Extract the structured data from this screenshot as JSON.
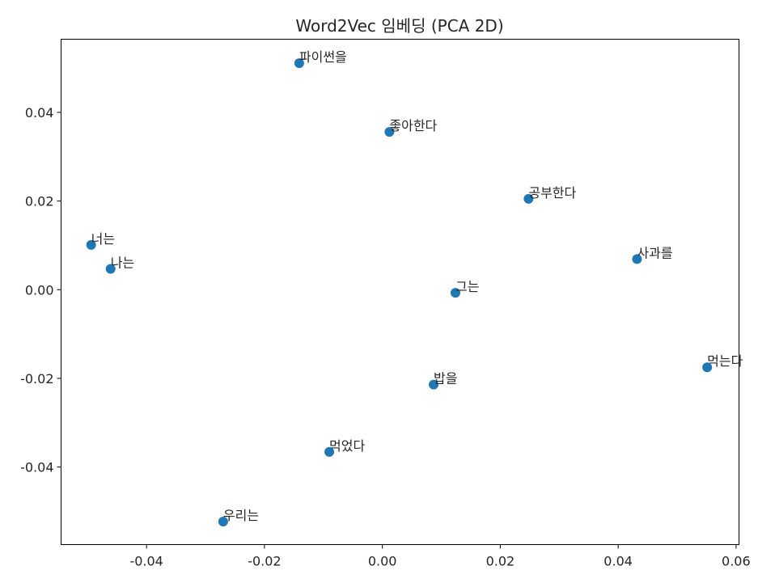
{
  "chart_data": {
    "type": "scatter",
    "title": "Word2Vec 임베딩 (PCA 2D)",
    "xlabel": "",
    "ylabel": "",
    "xlim": [
      -0.0545,
      0.0605
    ],
    "ylim": [
      -0.0575,
      0.0565
    ],
    "xticks": [
      -0.04,
      -0.02,
      0.0,
      0.02,
      0.04,
      0.06
    ],
    "xtick_labels": [
      "-0.04",
      "-0.02",
      "0.00",
      "0.02",
      "0.04",
      "0.06"
    ],
    "yticks": [
      -0.04,
      -0.02,
      0.0,
      0.02,
      0.04
    ],
    "ytick_labels": [
      "-0.04",
      "-0.02",
      "0.00",
      "0.02",
      "0.04"
    ],
    "grid": false,
    "marker_color": "#1f77b4",
    "points": [
      {
        "label": "파이썬을",
        "x": -0.0141,
        "y": 0.0511
      },
      {
        "label": "좋아한다",
        "x": 0.0012,
        "y": 0.0356
      },
      {
        "label": "공부한다",
        "x": 0.0248,
        "y": 0.0205
      },
      {
        "label": "너는",
        "x": -0.0494,
        "y": 0.0101
      },
      {
        "label": "나는",
        "x": -0.0461,
        "y": 0.0047
      },
      {
        "label": "사과를",
        "x": 0.0432,
        "y": 0.0069
      },
      {
        "label": "그는",
        "x": 0.0124,
        "y": -0.0007
      },
      {
        "label": "먹는다",
        "x": 0.0551,
        "y": -0.0175
      },
      {
        "label": "밥을",
        "x": 0.0087,
        "y": -0.0214
      },
      {
        "label": "먹었다",
        "x": -0.009,
        "y": -0.0366
      },
      {
        "label": "우리는",
        "x": -0.027,
        "y": -0.0523
      }
    ]
  }
}
